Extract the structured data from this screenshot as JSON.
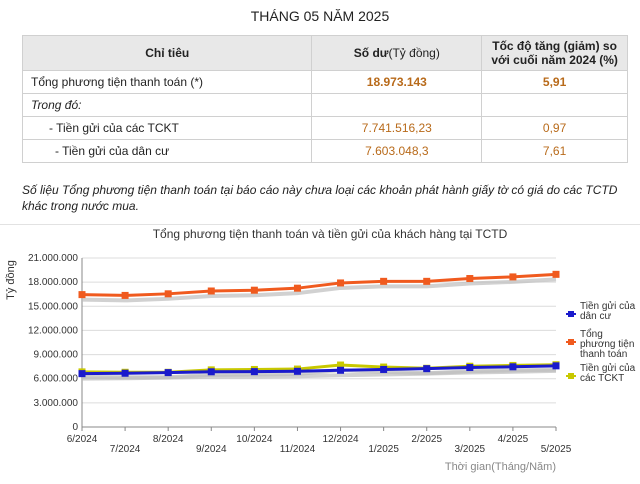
{
  "title": "THÁNG 05 NĂM 2025",
  "table": {
    "headers": {
      "indicator": "Chỉ tiêu",
      "balance_main": "Số dư",
      "balance_unit": "(Tỷ đồng)",
      "growth": "Tốc độ tăng (giảm) so với cuối năm 2024 (%)"
    },
    "rows": [
      {
        "label": "Tổng phương tiện thanh toán (*)",
        "balance": "18.973.143",
        "growth": "5,91"
      },
      {
        "label": "Trong đó:",
        "balance": "",
        "growth": ""
      },
      {
        "label": "- Tiền gửi của các TCKT",
        "balance": "7.741.516,23",
        "growth": "0,97"
      },
      {
        "label": "  - Tiền gửi của dân cư",
        "balance": "7.603.048,3",
        "growth": "7,61"
      }
    ]
  },
  "note": "Số liệu Tổng phương tiện thanh toán tại báo cáo này chưa loại các khoản phát hành giấy tờ có giá do các TCTD khác trong nước mua.",
  "chart_data": {
    "type": "line",
    "title": "Tổng phương tiện thanh toán và tiền gửi của khách hàng tại TCTD",
    "ylabel": "Tỷ đồng",
    "xlabel": "Thời gian(Tháng/Năm)",
    "ylim": [
      0,
      21000000
    ],
    "yticks": [
      "0",
      "3.000.000",
      "6.000.000",
      "9.000.000",
      "12.000.000",
      "15.000.000",
      "18.000.000",
      "21.000.000"
    ],
    "ytick_values": [
      0,
      3000000,
      6000000,
      9000000,
      12000000,
      15000000,
      18000000,
      21000000
    ],
    "categories": [
      "6/2024",
      "7/2024",
      "8/2024",
      "9/2024",
      "10/2024",
      "11/2024",
      "12/2024",
      "1/2025",
      "2/2025",
      "3/2025",
      "4/2025",
      "5/2025"
    ],
    "grid": true,
    "legend_position": "right",
    "series": [
      {
        "name": "Tiền gửi của dân cư",
        "color": "#1a1acc",
        "values": [
          6630000,
          6680000,
          6760000,
          6860000,
          6880000,
          6920000,
          7050000,
          7150000,
          7250000,
          7390000,
          7480000,
          7600000
        ]
      },
      {
        "name": "Tổng phương tiện thanh toán",
        "color": "#f05a1e",
        "values": [
          16450000,
          16350000,
          16550000,
          16900000,
          17000000,
          17250000,
          17900000,
          18100000,
          18100000,
          18450000,
          18650000,
          18970000
        ]
      },
      {
        "name": "Tiền gửi của các TCKT",
        "color": "#c8c800",
        "values": [
          6850000,
          6800000,
          6800000,
          7100000,
          7150000,
          7200000,
          7700000,
          7450000,
          7300000,
          7550000,
          7650000,
          7740000
        ]
      }
    ]
  }
}
